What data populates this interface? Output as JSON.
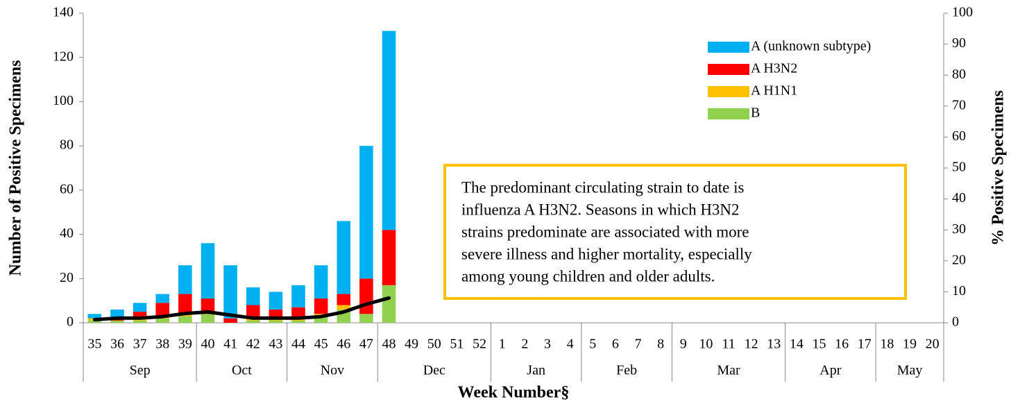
{
  "chart_data": {
    "type": "bar",
    "stacked": true,
    "categories": [
      "35",
      "36",
      "37",
      "38",
      "39",
      "40",
      "41",
      "42",
      "43",
      "44",
      "45",
      "46",
      "47",
      "48",
      "49",
      "50",
      "51",
      "52",
      "1",
      "2",
      "3",
      "4",
      "5",
      "6",
      "7",
      "8",
      "9",
      "10",
      "11",
      "12",
      "13",
      "14",
      "15",
      "16",
      "17",
      "18",
      "19",
      "20"
    ],
    "months": [
      "Sep",
      null,
      null,
      null,
      null,
      "Oct",
      null,
      null,
      null,
      "Nov",
      null,
      null,
      null,
      "Dec",
      null,
      null,
      null,
      null,
      "Jan",
      null,
      null,
      null,
      "Feb",
      null,
      null,
      null,
      "Mar",
      null,
      null,
      null,
      null,
      "Apr",
      null,
      null,
      null,
      "May",
      null,
      null
    ],
    "series": [
      {
        "name": "B",
        "color": "#92d050",
        "values": [
          1,
          1,
          1,
          2,
          3,
          4,
          0,
          1,
          1,
          1,
          3,
          6,
          4,
          17,
          null,
          null,
          null,
          null,
          null,
          null,
          null,
          null,
          null,
          null,
          null,
          null,
          null,
          null,
          null,
          null,
          null,
          null,
          null,
          null,
          null,
          null,
          null,
          null
        ]
      },
      {
        "name": "A H1N1",
        "color": "#ffc000",
        "values": [
          1,
          0,
          1,
          1,
          1,
          0,
          0,
          1,
          1,
          1,
          1,
          2,
          0,
          0,
          null,
          null,
          null,
          null,
          null,
          null,
          null,
          null,
          null,
          null,
          null,
          null,
          null,
          null,
          null,
          null,
          null,
          null,
          null,
          null,
          null,
          null,
          null,
          null
        ]
      },
      {
        "name": "A H3N2",
        "color": "#ff0000",
        "values": [
          0,
          1,
          3,
          6,
          9,
          7,
          2,
          6,
          4,
          5,
          7,
          5,
          16,
          25,
          null,
          null,
          null,
          null,
          null,
          null,
          null,
          null,
          null,
          null,
          null,
          null,
          null,
          null,
          null,
          null,
          null,
          null,
          null,
          null,
          null,
          null,
          null,
          null
        ]
      },
      {
        "name": "A (unknown subtype)",
        "color": "#00b0f0",
        "values": [
          2,
          4,
          4,
          4,
          13,
          25,
          24,
          8,
          8,
          10,
          15,
          33,
          60,
          90,
          null,
          null,
          null,
          null,
          null,
          null,
          null,
          null,
          null,
          null,
          null,
          null,
          null,
          null,
          null,
          null,
          null,
          null,
          null,
          null,
          null,
          null,
          null,
          null
        ]
      },
      {
        "name": "% Positive",
        "type": "line",
        "axis": "y2",
        "color": "#000000",
        "values": [
          1,
          1.5,
          1.5,
          2,
          3,
          3.5,
          2.5,
          1.5,
          1.5,
          1.5,
          2,
          3.5,
          6,
          8,
          null,
          null,
          null,
          null,
          null,
          null,
          null,
          null,
          null,
          null,
          null,
          null,
          null,
          null,
          null,
          null,
          null,
          null,
          null,
          null,
          null,
          null,
          null,
          null
        ]
      }
    ],
    "ylim": [
      0,
      140
    ],
    "yticks": [
      0,
      20,
      40,
      60,
      80,
      100,
      120,
      140
    ],
    "y2lim": [
      0,
      100
    ],
    "y2ticks": [
      0,
      10,
      20,
      30,
      40,
      50,
      60,
      70,
      80,
      90,
      100
    ],
    "y_label": "Number of Positive Specimens",
    "y2_label": "% Positive Specimens",
    "x_label": "Week Number§",
    "legend": "top-right",
    "annotation_lines": [
      "The predominant circulating strain to date is",
      "influenza A H3N2. Seasons in which H3N2",
      "strains predominate are associated with more",
      "severe illness and higher mortality, especially",
      "among young children and older adults."
    ],
    "annotation_border": "#ffc000"
  }
}
